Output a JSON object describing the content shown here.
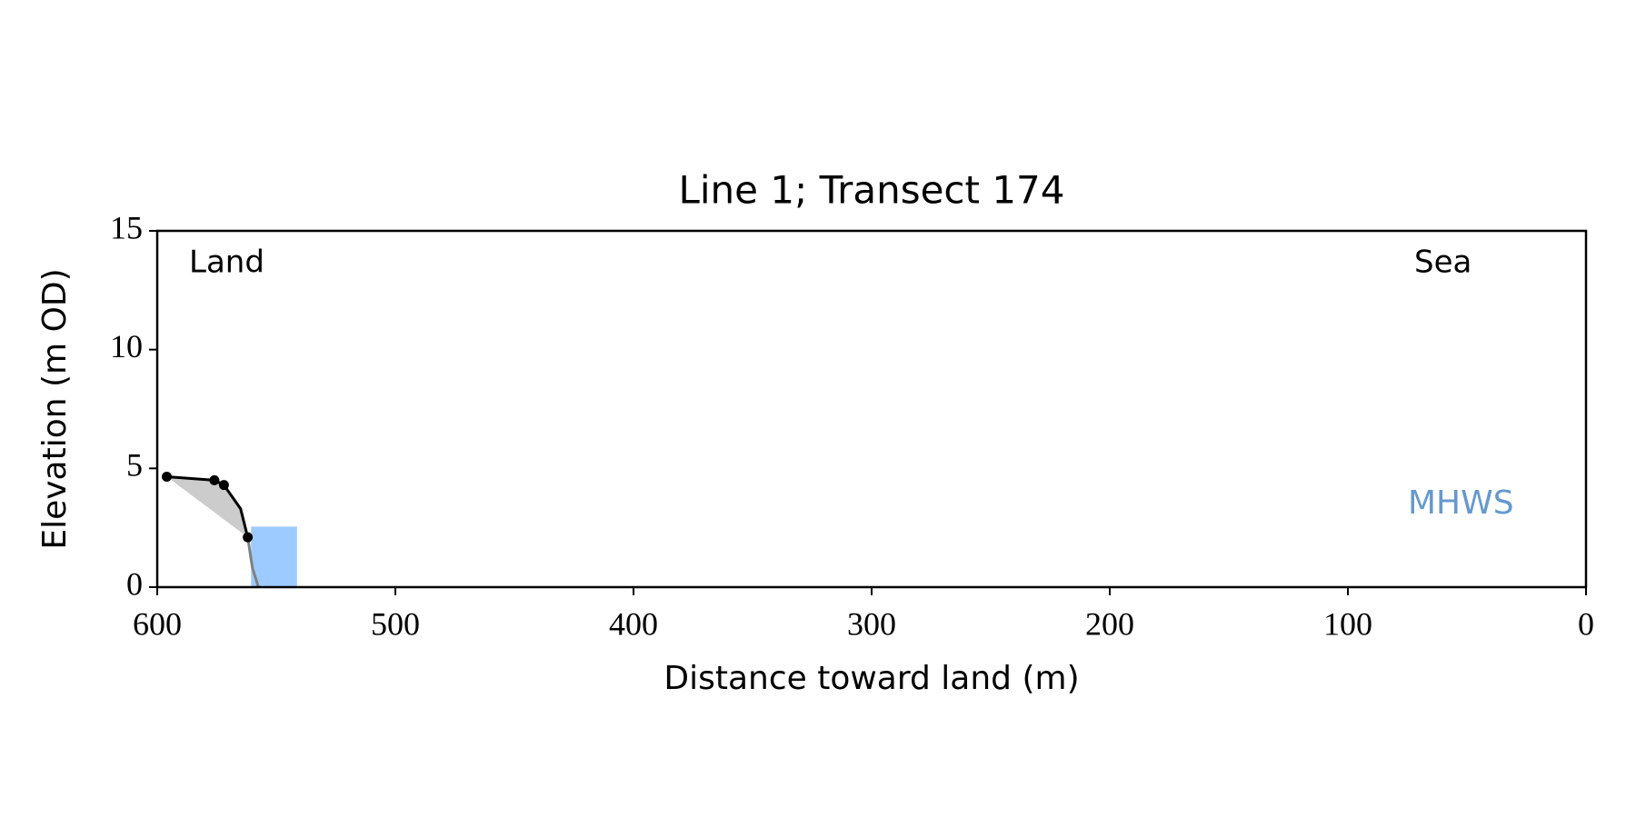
{
  "chart_data": {
    "type": "line",
    "title": "Line 1; Transect 174",
    "xlabel": "Distance toward land (m)",
    "ylabel": "Elevation (m OD)",
    "xlim": [
      600,
      0
    ],
    "ylim": [
      0,
      15
    ],
    "xticks": [
      600,
      500,
      400,
      300,
      200,
      100,
      0
    ],
    "yticks": [
      0,
      5,
      10,
      15
    ],
    "annotations": [
      "Land",
      "Sea"
    ],
    "series": [
      {
        "color": "#000000",
        "fill": "#cccccc",
        "markers": true,
        "x": [
          596,
          576,
          572,
          565,
          562
        ],
        "y": [
          4.65,
          4.5,
          4.3,
          3.3,
          2.1
        ]
      },
      {
        "color": "#808080",
        "markers": false,
        "x": [
          562,
          560,
          557.5
        ],
        "y": [
          2.1,
          0.8,
          0
        ]
      }
    ],
    "mhws": {
      "label": "MHWS",
      "elevation": 2.55,
      "x": [
        560.6,
        541.3
      ],
      "color": "#9ecbff",
      "label_color": "#6699cc"
    }
  }
}
